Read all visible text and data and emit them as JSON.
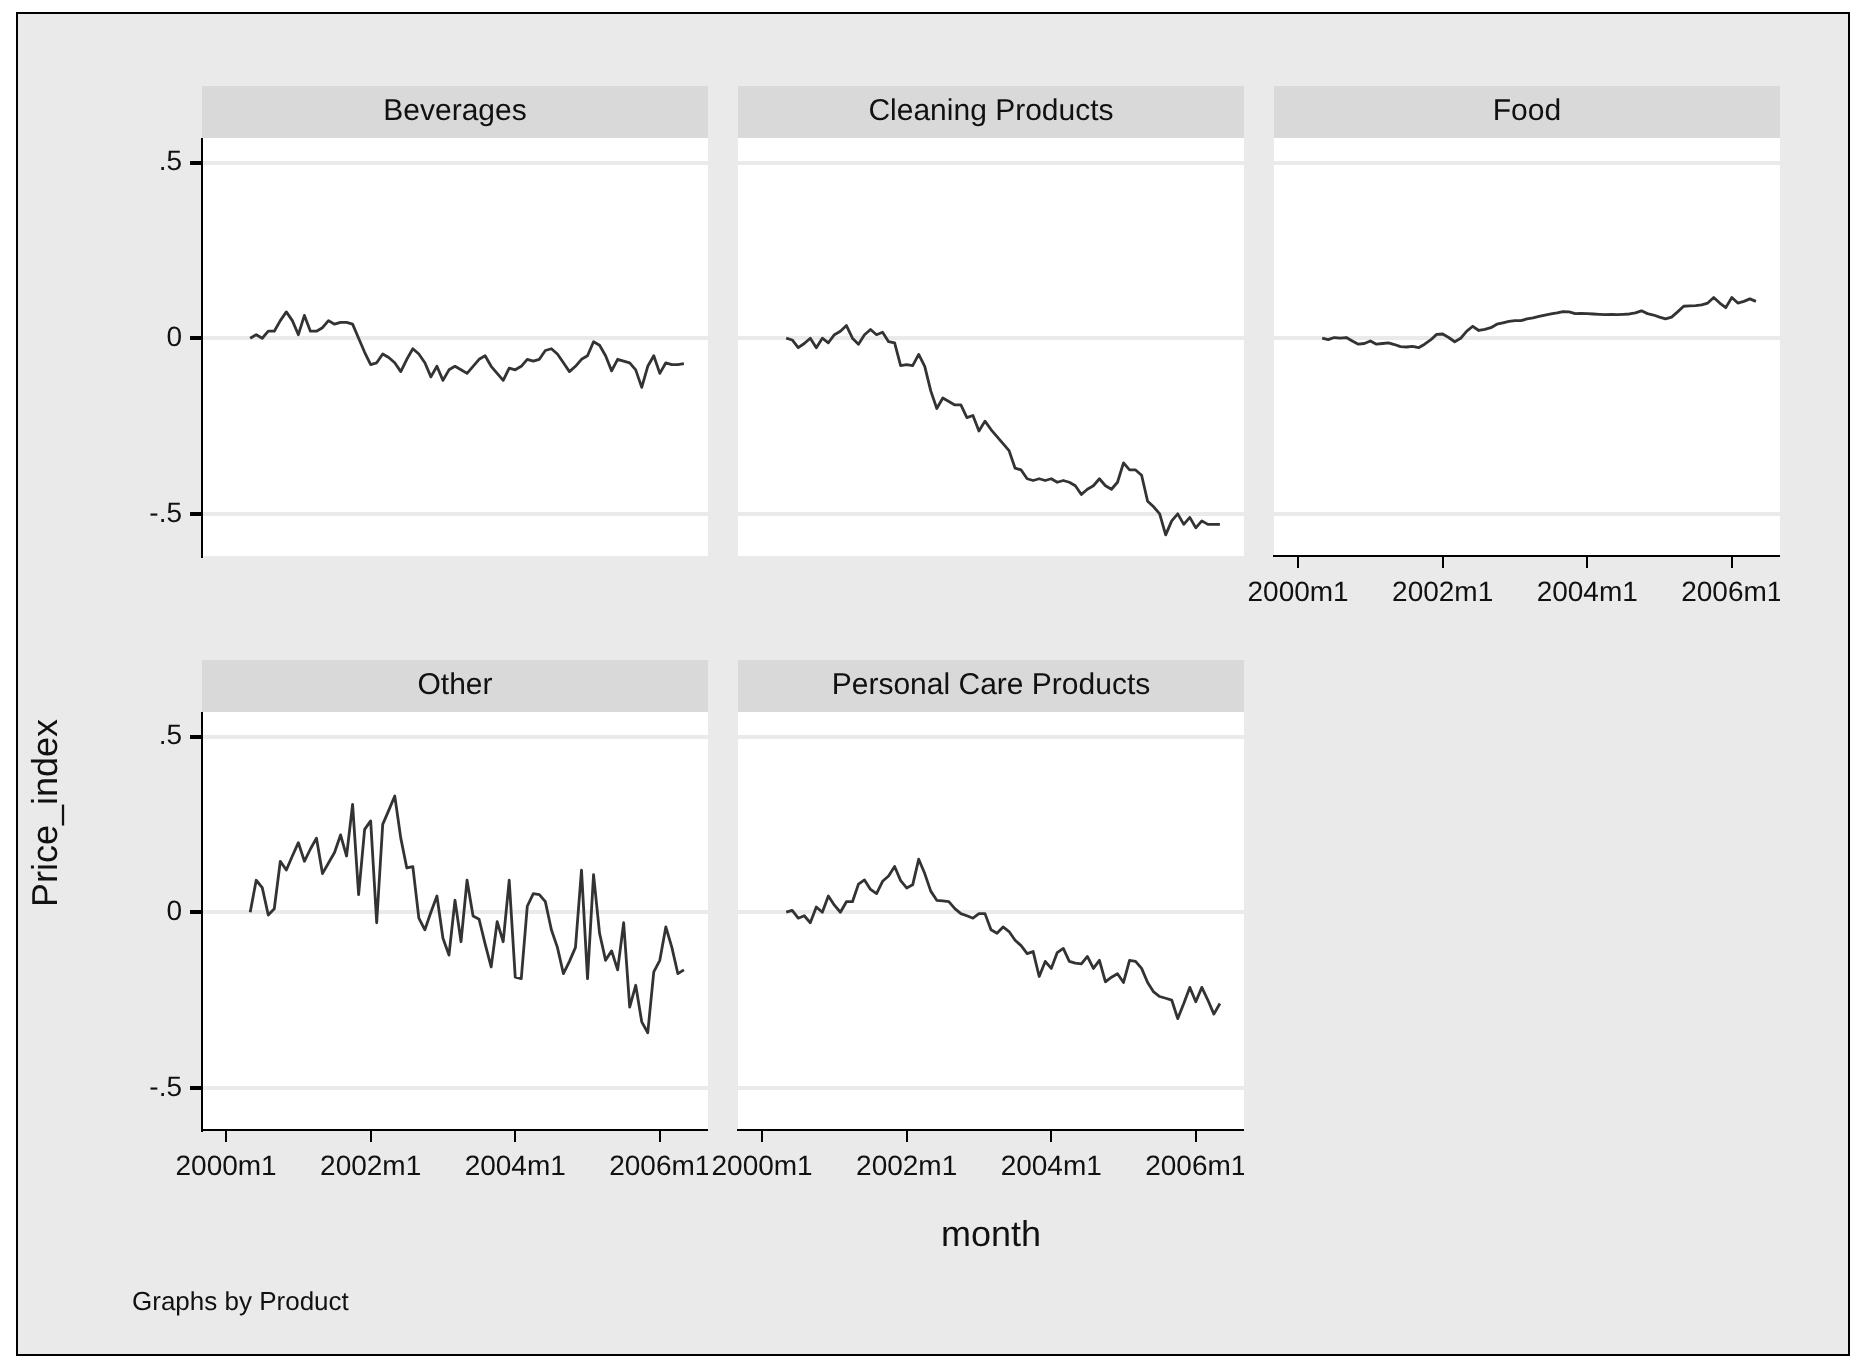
{
  "chart_data": [
    {
      "type": "line",
      "title": "Beverages",
      "tick_labels": "y",
      "grid": "y",
      "xlim": [
        "1999-09",
        "2006-09"
      ],
      "ylim": [
        -0.62,
        0.57
      ],
      "yticks": [
        {
          "value": -0.5,
          "label": "-.5"
        },
        0,
        {
          "value": 0.5,
          "label": ".5"
        }
      ],
      "x": [
        "2000-05",
        "2000-06",
        "2000-07",
        "2000-08",
        "2000-09",
        "2000-10",
        "2000-11",
        "2000-12",
        "2001-01",
        "2001-02",
        "2001-03",
        "2001-04",
        "2001-05",
        "2001-06",
        "2001-07",
        "2001-08",
        "2001-09",
        "2001-10",
        "2001-11",
        "2001-12",
        "2002-01",
        "2002-02",
        "2002-03",
        "2002-04",
        "2002-05",
        "2002-06",
        "2002-07",
        "2002-08",
        "2002-09",
        "2002-10",
        "2002-11",
        "2002-12",
        "2003-01",
        "2003-02",
        "2003-03",
        "2003-04",
        "2003-05",
        "2003-06",
        "2003-07",
        "2003-08",
        "2003-09",
        "2003-10",
        "2003-11",
        "2003-12",
        "2004-01",
        "2004-02",
        "2004-03",
        "2004-04",
        "2004-05",
        "2004-06",
        "2004-07",
        "2004-08",
        "2004-09",
        "2004-10",
        "2004-11",
        "2004-12",
        "2005-01",
        "2005-02",
        "2005-03",
        "2005-04",
        "2005-05",
        "2005-06",
        "2005-07",
        "2005-08",
        "2005-09",
        "2005-10",
        "2005-11",
        "2005-12",
        "2006-01",
        "2006-02",
        "2006-03",
        "2006-04",
        "2006-05"
      ],
      "series": [
        {
          "color": "#333333",
          "values": [
            0,
            0.01,
            0,
            0.02,
            0.02,
            0.05,
            0.075,
            0.05,
            0.01,
            0.065,
            0.02,
            0.02,
            0.03,
            0.05,
            0.04,
            0.045,
            0.045,
            0.04,
            0,
            -0.04,
            -0.075,
            -0.07,
            -0.045,
            -0.055,
            -0.07,
            -0.095,
            -0.06,
            -0.03,
            -0.045,
            -0.07,
            -0.11,
            -0.08,
            -0.12,
            -0.09,
            -0.08,
            -0.09,
            -0.1,
            -0.08,
            -0.06,
            -0.05,
            -0.08,
            -0.1,
            -0.12,
            -0.085,
            -0.09,
            -0.08,
            -0.06,
            -0.065,
            -0.06,
            -0.035,
            -0.03,
            -0.045,
            -0.07,
            -0.095,
            -0.08,
            -0.06,
            -0.05,
            -0.01,
            -0.02,
            -0.05,
            -0.093,
            -0.06,
            -0.065,
            -0.07,
            -0.09,
            -0.14,
            -0.08,
            -0.05,
            -0.1,
            -0.07,
            -0.075,
            -0.075,
            -0.072
          ]
        }
      ]
    },
    {
      "type": "line",
      "title": "Cleaning Products",
      "tick_labels": false,
      "grid": "y",
      "xlim": [
        "1999-09",
        "2006-09"
      ],
      "ylim": [
        -0.62,
        0.57
      ],
      "yticks": [
        {
          "value": -0.5,
          "label": null
        },
        {
          "value": 0,
          "label": null
        },
        {
          "value": 0.5,
          "label": null
        }
      ],
      "x": [
        "2000-05",
        "2000-06",
        "2000-07",
        "2000-08",
        "2000-09",
        "2000-10",
        "2000-11",
        "2000-12",
        "2001-01",
        "2001-02",
        "2001-03",
        "2001-04",
        "2001-05",
        "2001-06",
        "2001-07",
        "2001-08",
        "2001-09",
        "2001-10",
        "2001-11",
        "2001-12",
        "2002-01",
        "2002-02",
        "2002-03",
        "2002-04",
        "2002-05",
        "2002-06",
        "2002-07",
        "2002-08",
        "2002-09",
        "2002-10",
        "2002-11",
        "2002-12",
        "2003-01",
        "2003-02",
        "2003-03",
        "2003-04",
        "2003-05",
        "2003-06",
        "2003-07",
        "2003-08",
        "2003-09",
        "2003-10",
        "2003-11",
        "2003-12",
        "2004-01",
        "2004-02",
        "2004-03",
        "2004-04",
        "2004-05",
        "2004-06",
        "2004-07",
        "2004-08",
        "2004-09",
        "2004-10",
        "2004-11",
        "2004-12",
        "2005-01",
        "2005-02",
        "2005-03",
        "2005-04",
        "2005-05",
        "2005-06",
        "2005-07",
        "2005-08",
        "2005-09",
        "2005-10",
        "2005-11",
        "2005-12",
        "2006-01",
        "2006-02",
        "2006-03",
        "2006-04",
        "2006-05"
      ],
      "series": [
        {
          "color": "#333333",
          "values": [
            0,
            -0.005,
            -0.027,
            -0.015,
            0,
            -0.027,
            0,
            -0.013,
            0.01,
            0.02,
            0.036,
            0,
            -0.017,
            0.01,
            0.025,
            0.01,
            0.017,
            -0.01,
            -0.013,
            -0.078,
            -0.075,
            -0.078,
            -0.046,
            -0.08,
            -0.15,
            -0.2,
            -0.17,
            -0.18,
            -0.19,
            -0.19,
            -0.226,
            -0.22,
            -0.264,
            -0.236,
            -0.26,
            -0.28,
            -0.3,
            -0.32,
            -0.37,
            -0.375,
            -0.4,
            -0.405,
            -0.4,
            -0.405,
            -0.4,
            -0.41,
            -0.405,
            -0.41,
            -0.42,
            -0.445,
            -0.43,
            -0.42,
            -0.4,
            -0.42,
            -0.43,
            -0.41,
            -0.355,
            -0.375,
            -0.375,
            -0.39,
            -0.464,
            -0.48,
            -0.5,
            -0.56,
            -0.52,
            -0.5,
            -0.53,
            -0.51,
            -0.54,
            -0.52,
            -0.53,
            -0.53,
            -0.53
          ]
        }
      ]
    },
    {
      "type": "line",
      "title": "Food",
      "tick_labels": "x",
      "grid": "y",
      "xlim": [
        "1999-09",
        "2006-09"
      ],
      "ylim": [
        -0.62,
        0.57
      ],
      "xticks": [
        {
          "value": "2000-01",
          "label": "2000m1"
        },
        {
          "value": "2002-01",
          "label": "2002m1"
        },
        {
          "value": "2004-01",
          "label": "2004m1"
        },
        {
          "value": "2006-01",
          "label": "2006m1"
        }
      ],
      "yticks": [
        {
          "value": -0.5,
          "label": null
        },
        {
          "value": 0,
          "label": null
        },
        {
          "value": 0.5,
          "label": null
        }
      ],
      "x": [
        "2000-05",
        "2000-06",
        "2000-07",
        "2000-08",
        "2000-09",
        "2000-10",
        "2000-11",
        "2000-12",
        "2001-01",
        "2001-02",
        "2001-03",
        "2001-04",
        "2001-05",
        "2001-06",
        "2001-07",
        "2001-08",
        "2001-09",
        "2001-10",
        "2001-11",
        "2001-12",
        "2002-01",
        "2002-02",
        "2002-03",
        "2002-04",
        "2002-05",
        "2002-06",
        "2002-07",
        "2002-08",
        "2002-09",
        "2002-10",
        "2002-11",
        "2002-12",
        "2003-01",
        "2003-02",
        "2003-03",
        "2003-04",
        "2003-05",
        "2003-06",
        "2003-07",
        "2003-08",
        "2003-09",
        "2003-10",
        "2003-11",
        "2003-12",
        "2004-01",
        "2004-02",
        "2004-03",
        "2004-04",
        "2004-05",
        "2004-06",
        "2004-07",
        "2004-08",
        "2004-09",
        "2004-10",
        "2004-11",
        "2004-12",
        "2005-01",
        "2005-02",
        "2005-03",
        "2005-04",
        "2005-05",
        "2005-06",
        "2005-07",
        "2005-08",
        "2005-09",
        "2005-10",
        "2005-11",
        "2005-12",
        "2006-01",
        "2006-02",
        "2006-03",
        "2006-04",
        "2006-05"
      ],
      "series": [
        {
          "color": "#333333",
          "values": [
            0,
            -0.004,
            0.002,
            0,
            0.002,
            -0.008,
            -0.017,
            -0.015,
            -0.008,
            -0.017,
            -0.015,
            -0.013,
            -0.018,
            -0.024,
            -0.025,
            -0.023,
            -0.027,
            -0.017,
            -0.005,
            0.011,
            0.012,
            0.002,
            -0.01,
            0,
            0.02,
            0.034,
            0.022,
            0.025,
            0.03,
            0.04,
            0.044,
            0.048,
            0.05,
            0.05,
            0.055,
            0.058,
            0.062,
            0.066,
            0.069,
            0.072,
            0.076,
            0.075,
            0.07,
            0.071,
            0.07,
            0.069,
            0.068,
            0.067,
            0.068,
            0.067,
            0.068,
            0.069,
            0.072,
            0.078,
            0.07,
            0.066,
            0.06,
            0.055,
            0.06,
            0.075,
            0.091,
            0.092,
            0.093,
            0.095,
            0.1,
            0.116,
            0.1,
            0.087,
            0.116,
            0.1,
            0.105,
            0.112,
            0.105
          ]
        }
      ]
    },
    {
      "type": "line",
      "title": "Other",
      "ylabel": "Price_index",
      "annotations": [
        "Graphs by Product"
      ],
      "grid": "y",
      "xlim": [
        "1999-09",
        "2006-09"
      ],
      "ylim": [
        -0.62,
        0.57
      ],
      "xticks": [
        {
          "value": "2000-01",
          "label": "2000m1"
        },
        {
          "value": "2002-01",
          "label": "2002m1"
        },
        {
          "value": "2004-01",
          "label": "2004m1"
        },
        {
          "value": "2006-01",
          "label": "2006m1"
        }
      ],
      "yticks": [
        {
          "value": -0.5,
          "label": "-.5"
        },
        0,
        {
          "value": 0.5,
          "label": ".5"
        }
      ],
      "x": [
        "2000-05",
        "2000-06",
        "2000-07",
        "2000-08",
        "2000-09",
        "2000-10",
        "2000-11",
        "2000-12",
        "2001-01",
        "2001-02",
        "2001-03",
        "2001-04",
        "2001-05",
        "2001-06",
        "2001-07",
        "2001-08",
        "2001-09",
        "2001-10",
        "2001-11",
        "2001-12",
        "2002-01",
        "2002-02",
        "2002-03",
        "2002-04",
        "2002-05",
        "2002-06",
        "2002-07",
        "2002-08",
        "2002-09",
        "2002-10",
        "2002-11",
        "2002-12",
        "2003-01",
        "2003-02",
        "2003-03",
        "2003-04",
        "2003-05",
        "2003-06",
        "2003-07",
        "2003-08",
        "2003-09",
        "2003-10",
        "2003-11",
        "2003-12",
        "2004-01",
        "2004-02",
        "2004-03",
        "2004-04",
        "2004-05",
        "2004-06",
        "2004-07",
        "2004-08",
        "2004-09",
        "2004-10",
        "2004-11",
        "2004-12",
        "2005-01",
        "2005-02",
        "2005-03",
        "2005-04",
        "2005-05",
        "2005-06",
        "2005-07",
        "2005-08",
        "2005-09",
        "2005-10",
        "2005-11",
        "2005-12",
        "2006-01",
        "2006-02",
        "2006-03",
        "2006-04",
        "2006-05"
      ],
      "series": [
        {
          "color": "#333333",
          "values": [
            0,
            0.091,
            0.07,
            -0.008,
            0.01,
            0.145,
            0.12,
            0.16,
            0.198,
            0.145,
            0.18,
            0.211,
            0.11,
            0.14,
            0.17,
            0.22,
            0.16,
            0.307,
            0.05,
            0.236,
            0.26,
            -0.03,
            0.25,
            0.29,
            0.331,
            0.211,
            0.126,
            0.13,
            -0.017,
            -0.05,
            0,
            0.046,
            -0.074,
            -0.122,
            0.034,
            -0.084,
            0.091,
            -0.011,
            -0.02,
            -0.09,
            -0.156,
            -0.027,
            -0.084,
            0.091,
            -0.185,
            -0.189,
            0.017,
            0.053,
            0.05,
            0.03,
            -0.05,
            -0.1,
            -0.175,
            -0.14,
            -0.1,
            0.12,
            -0.189,
            0.107,
            -0.06,
            -0.137,
            -0.11,
            -0.164,
            -0.03,
            -0.27,
            -0.208,
            -0.312,
            -0.343,
            -0.17,
            -0.137,
            -0.042,
            -0.1,
            -0.175,
            -0.164
          ]
        }
      ]
    },
    {
      "type": "line",
      "title": "Personal Care Products",
      "xlabel": "month",
      "tick_labels": "x",
      "grid": "y",
      "xlim": [
        "1999-09",
        "2006-09"
      ],
      "ylim": [
        -0.62,
        0.57
      ],
      "xticks": [
        {
          "value": "2000-01",
          "label": "2000m1"
        },
        {
          "value": "2002-01",
          "label": "2002m1"
        },
        {
          "value": "2004-01",
          "label": "2004m1"
        },
        {
          "value": "2006-01",
          "label": "2006m1"
        }
      ],
      "yticks": [
        {
          "value": -0.5,
          "label": null
        },
        {
          "value": 0,
          "label": null
        },
        {
          "value": 0.5,
          "label": null
        }
      ],
      "x": [
        "2000-05",
        "2000-06",
        "2000-07",
        "2000-08",
        "2000-09",
        "2000-10",
        "2000-11",
        "2000-12",
        "2001-01",
        "2001-02",
        "2001-03",
        "2001-04",
        "2001-05",
        "2001-06",
        "2001-07",
        "2001-08",
        "2001-09",
        "2001-10",
        "2001-11",
        "2001-12",
        "2002-01",
        "2002-02",
        "2002-03",
        "2002-04",
        "2002-05",
        "2002-06",
        "2002-07",
        "2002-08",
        "2002-09",
        "2002-10",
        "2002-11",
        "2002-12",
        "2003-01",
        "2003-02",
        "2003-03",
        "2003-04",
        "2003-05",
        "2003-06",
        "2003-07",
        "2003-08",
        "2003-09",
        "2003-10",
        "2003-11",
        "2003-12",
        "2004-01",
        "2004-02",
        "2004-03",
        "2004-04",
        "2004-05",
        "2004-06",
        "2004-07",
        "2004-08",
        "2004-09",
        "2004-10",
        "2004-11",
        "2004-12",
        "2005-01",
        "2005-02",
        "2005-03",
        "2005-04",
        "2005-05",
        "2005-06",
        "2005-07",
        "2005-08",
        "2005-09",
        "2005-10",
        "2005-11",
        "2005-12",
        "2006-01",
        "2006-02",
        "2006-03",
        "2006-04",
        "2006-05"
      ],
      "series": [
        {
          "color": "#333333",
          "values": [
            0,
            0.005,
            -0.017,
            -0.01,
            -0.03,
            0.015,
            0,
            0.046,
            0.02,
            0,
            0.03,
            0.03,
            0.08,
            0.092,
            0.065,
            0.053,
            0.088,
            0.103,
            0.13,
            0.09,
            0.069,
            0.078,
            0.151,
            0.11,
            0.06,
            0.034,
            0.032,
            0.03,
            0.01,
            -0.004,
            -0.01,
            -0.017,
            -0.004,
            -0.004,
            -0.05,
            -0.06,
            -0.042,
            -0.055,
            -0.08,
            -0.095,
            -0.118,
            -0.112,
            -0.183,
            -0.14,
            -0.16,
            -0.115,
            -0.103,
            -0.14,
            -0.145,
            -0.147,
            -0.126,
            -0.16,
            -0.137,
            -0.198,
            -0.185,
            -0.175,
            -0.2,
            -0.137,
            -0.14,
            -0.16,
            -0.2,
            -0.227,
            -0.24,
            -0.245,
            -0.25,
            -0.303,
            -0.26,
            -0.214,
            -0.255,
            -0.214,
            -0.25,
            -0.29,
            -0.26
          ]
        }
      ]
    }
  ]
}
